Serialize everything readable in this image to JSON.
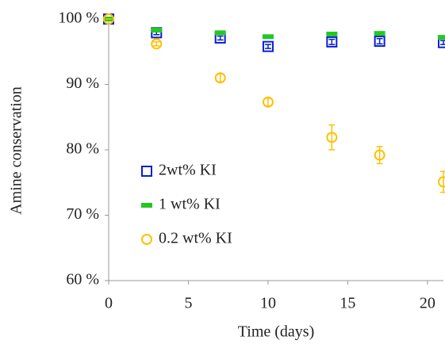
{
  "chart_data": {
    "type": "scatter",
    "xlabel": "Time (days)",
    "ylabel": "Amine conservation",
    "xlim": [
      0,
      21
    ],
    "xticks": [
      0,
      5,
      10,
      15,
      20
    ],
    "ylim": [
      60,
      100
    ],
    "yticks": [
      {
        "value": 60,
        "label": "60 %"
      },
      {
        "value": 70,
        "label": "70 %"
      },
      {
        "value": 80,
        "label": "80 %"
      },
      {
        "value": 90,
        "label": "90 %"
      },
      {
        "value": 100,
        "label": "100 %"
      }
    ],
    "x": [
      0,
      3,
      7,
      10,
      14,
      17,
      21
    ],
    "series": [
      {
        "name": "2wt% KI",
        "color": "#0a1fd0",
        "marker": "square",
        "values": [
          100,
          97.9,
          97.1,
          95.8,
          96.5,
          96.6,
          96.4
        ],
        "errors": [
          0,
          0.3,
          0.3,
          0.3,
          0.4,
          0.4,
          0.3
        ]
      },
      {
        "name": "1 wt% KI",
        "color": "#22c822",
        "marker": "dash",
        "values": [
          100,
          98.3,
          97.9,
          97.3,
          97.7,
          97.8,
          97.2
        ],
        "errors": [
          0,
          0.2,
          0.2,
          0.2,
          0.2,
          0.2,
          0.2
        ]
      },
      {
        "name": "0.2 wt% KI",
        "color": "#ffc000",
        "marker": "circle",
        "values": [
          100,
          96.2,
          91.0,
          87.3,
          81.9,
          79.2,
          75.1
        ],
        "errors": [
          0,
          0.3,
          0.6,
          0.6,
          1.9,
          1.3,
          1.6
        ]
      }
    ]
  }
}
